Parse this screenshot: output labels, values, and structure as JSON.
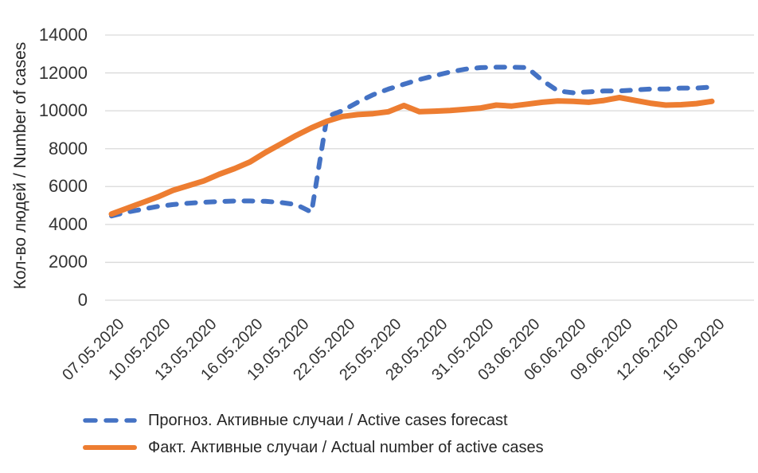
{
  "chart_data": {
    "type": "line",
    "title": "",
    "xlabel": "",
    "ylabel": "Кол-во людей / Number of cases",
    "ylim": [
      0,
      14000
    ],
    "ytick_step": 2000,
    "y_ticks": [
      0,
      2000,
      4000,
      6000,
      8000,
      10000,
      12000,
      14000
    ],
    "grid": "horizontal",
    "gridline_color": "#D9D9D9",
    "legend_position": "bottom-left",
    "x_tick_every": 3,
    "x": [
      "07.05.2020",
      "08.05.2020",
      "09.05.2020",
      "10.05.2020",
      "11.05.2020",
      "12.05.2020",
      "13.05.2020",
      "14.05.2020",
      "15.05.2020",
      "16.05.2020",
      "17.05.2020",
      "18.05.2020",
      "19.05.2020",
      "20.05.2020",
      "21.05.2020",
      "22.05.2020",
      "23.05.2020",
      "24.05.2020",
      "25.05.2020",
      "26.05.2020",
      "27.05.2020",
      "28.05.2020",
      "29.05.2020",
      "30.05.2020",
      "31.05.2020",
      "01.06.2020",
      "02.06.2020",
      "03.06.2020",
      "04.06.2020",
      "05.06.2020",
      "06.06.2020",
      "07.06.2020",
      "08.06.2020",
      "09.06.2020",
      "10.06.2020",
      "11.06.2020",
      "12.06.2020",
      "13.06.2020",
      "14.06.2020",
      "15.06.2020"
    ],
    "series": [
      {
        "name": "Прогноз. Активные случаи / Active cases forecast",
        "color": "#4472C4",
        "style": "dashed",
        "values": [
          4450,
          4650,
          4800,
          4950,
          5050,
          5120,
          5170,
          5210,
          5240,
          5240,
          5220,
          5160,
          5050,
          4650,
          9700,
          10000,
          10450,
          10850,
          11150,
          11400,
          11650,
          11850,
          12050,
          12200,
          12280,
          12300,
          12300,
          12280,
          11600,
          11050,
          10950,
          11000,
          11050,
          11050,
          11100,
          11150,
          11150,
          11200,
          11200,
          11250
        ]
      },
      {
        "name": "Факт. Активные случаи / Actual number of active cases",
        "color": "#ED7D31",
        "style": "solid",
        "values": [
          4550,
          4850,
          5150,
          5450,
          5800,
          6050,
          6300,
          6650,
          6950,
          7300,
          7800,
          8250,
          8700,
          9100,
          9450,
          9700,
          9800,
          9850,
          9950,
          10280,
          9950,
          9980,
          10020,
          10080,
          10150,
          10300,
          10250,
          10350,
          10450,
          10520,
          10500,
          10450,
          10550,
          10700,
          10550,
          10400,
          10300,
          10320,
          10380,
          10500
        ]
      }
    ]
  }
}
